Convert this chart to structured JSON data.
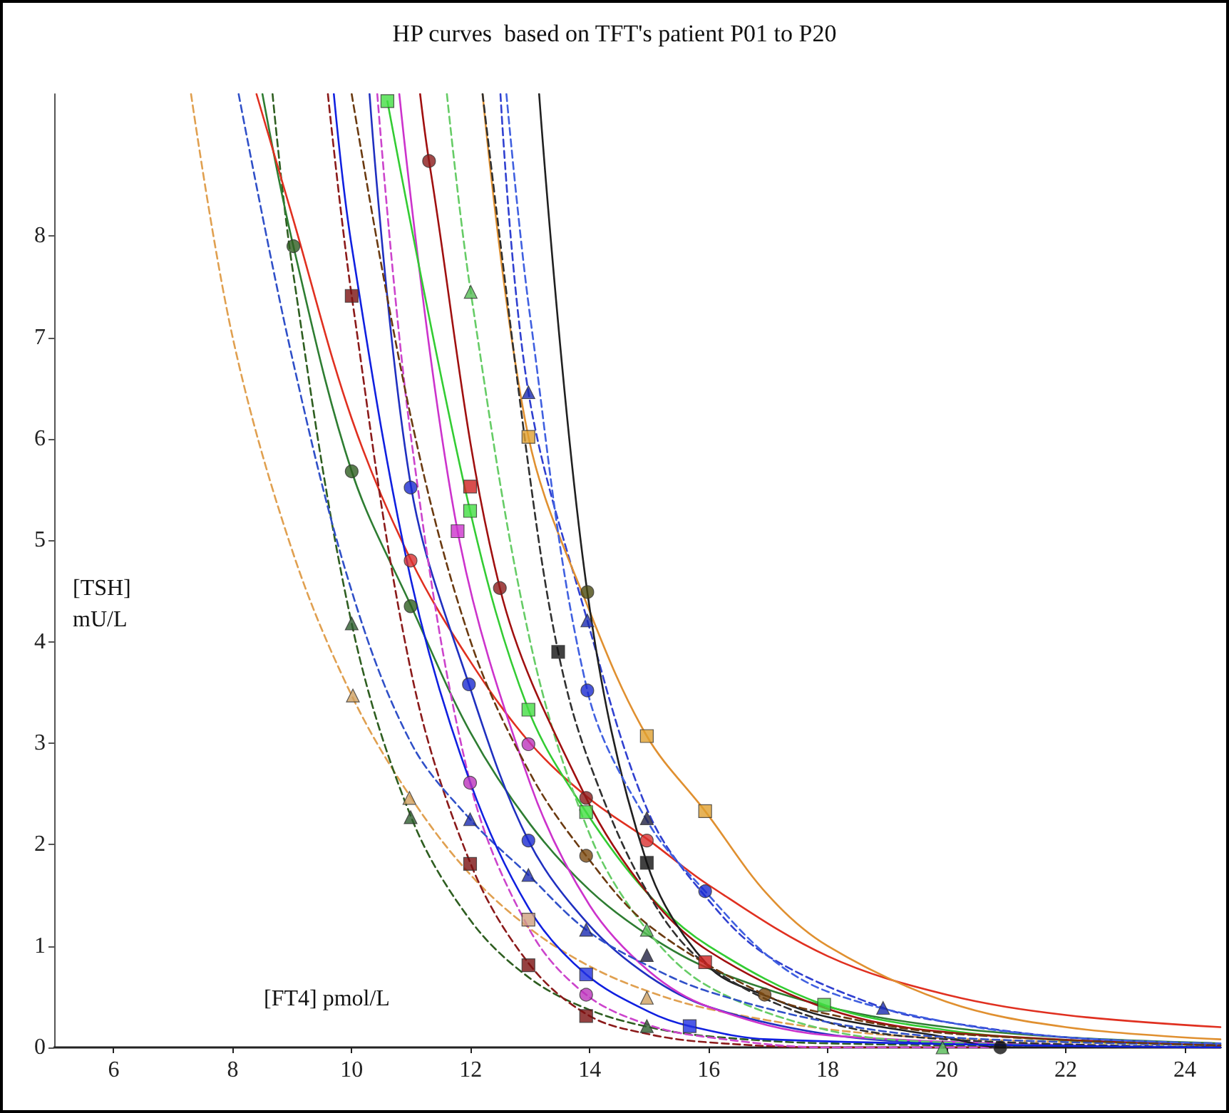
{
  "chart_data": {
    "type": "line",
    "title": "HP curves  based on TFT's patient P01 to P20",
    "xlabel": "[FT4] pmol/L",
    "ylabel": "[TSH] mU/L",
    "xlim": [
      5,
      24.6
    ],
    "ylim": [
      0,
      9.4
    ],
    "xticks": [
      6,
      8,
      10,
      12,
      14,
      16,
      18,
      20,
      22,
      24
    ],
    "yticks": [
      0,
      1,
      2,
      3,
      4,
      5,
      6,
      7,
      8
    ],
    "series": [
      {
        "color": "#e0a050",
        "line_style": "dashed",
        "x": [
          7.3,
          8,
          9,
          10,
          11,
          12,
          13,
          14,
          15,
          16,
          18,
          20,
          24.6
        ],
        "values": [
          9.4,
          7.0,
          4.9,
          3.47,
          2.46,
          1.7,
          1.17,
          0.8,
          0.55,
          0.38,
          0.18,
          0.09,
          0.02
        ]
      },
      {
        "color": "#2e5e20",
        "line_style": "dashed",
        "x": [
          8.67,
          9,
          10,
          11,
          12,
          13,
          14,
          15,
          16,
          18,
          24.6
        ],
        "values": [
          9.4,
          7.7,
          4.18,
          2.27,
          1.25,
          0.68,
          0.37,
          0.2,
          0.11,
          0.04,
          0
        ]
      },
      {
        "color": "#2e7d32",
        "line_style": "solid",
        "x": [
          8.5,
          9.02,
          10,
          11,
          12,
          13,
          14,
          15,
          16,
          18,
          20,
          22,
          24.6
        ],
        "values": [
          9.4,
          7.9,
          5.68,
          4.35,
          3.1,
          2.2,
          1.55,
          1.1,
          0.78,
          0.4,
          0.2,
          0.1,
          0.04
        ]
      },
      {
        "color": "#e03020",
        "line_style": "solid",
        "x": [
          8.4,
          9,
          10,
          11,
          12,
          13,
          14,
          15,
          16,
          18,
          20,
          22,
          24.6
        ],
        "values": [
          9.4,
          8.2,
          6.2,
          4.8,
          3.8,
          3.0,
          2.45,
          2.04,
          1.6,
          0.9,
          0.52,
          0.32,
          0.2
        ]
      },
      {
        "color": "#8b1a1a",
        "line_style": "dashed",
        "x": [
          9.6,
          10,
          11,
          12,
          13,
          14,
          15,
          16,
          18,
          24.6
        ],
        "values": [
          9.4,
          7.41,
          3.7,
          1.81,
          0.81,
          0.31,
          0.13,
          0.05,
          0,
          0
        ]
      },
      {
        "color": "#2030c0",
        "line_style": "solid",
        "x": [
          10.3,
          11,
          11.97,
          12.97,
          14,
          15,
          16,
          18,
          20,
          24.6
        ],
        "values": [
          9.4,
          5.52,
          3.58,
          2.04,
          1.2,
          0.7,
          0.4,
          0.13,
          0.04,
          0
        ]
      },
      {
        "color": "#cc33cc",
        "line_style": "solid",
        "x": [
          10.8,
          11.78,
          13,
          14,
          15,
          16,
          18,
          24.6
        ],
        "values": [
          9.4,
          5.09,
          2.6,
          1.4,
          0.75,
          0.4,
          0.12,
          0
        ]
      },
      {
        "color": "#cc44cc",
        "line_style": "dashed",
        "x": [
          10.43,
          11,
          11.99,
          13,
          13.94,
          15,
          16,
          18,
          24.6
        ],
        "values": [
          9.4,
          6.0,
          2.61,
          1.15,
          0.52,
          0.22,
          0.1,
          0,
          0
        ]
      },
      {
        "color": "#33cc33",
        "line_style": "solid",
        "x": [
          10.6,
          11.99,
          12.97,
          13.94,
          15,
          16,
          17.94,
          20,
          22,
          24.6
        ],
        "values": [
          9.33,
          5.29,
          3.33,
          2.32,
          1.5,
          1.0,
          0.42,
          0.17,
          0.07,
          0.02
        ]
      },
      {
        "color": "#66cc66",
        "line_style": "dashed",
        "x": [
          11.6,
          12,
          13,
          14,
          14.96,
          16,
          18,
          19.93,
          24.6
        ],
        "values": [
          9.4,
          7.45,
          4.0,
          2.1,
          1.16,
          0.6,
          0.17,
          0.05,
          0
        ]
      },
      {
        "color": "#a01010",
        "line_style": "solid",
        "x": [
          11.15,
          11.3,
          12.49,
          13.94,
          15,
          16,
          18,
          20,
          24.6
        ],
        "values": [
          9.4,
          8.74,
          4.53,
          2.46,
          1.5,
          0.95,
          0.38,
          0.15,
          0.02
        ]
      },
      {
        "color": "#3040d0",
        "line_style": "dashed",
        "x": [
          12.5,
          12.97,
          13.96,
          15,
          16,
          17,
          18.93,
          20,
          22,
          24.6
        ],
        "values": [
          9.4,
          6.46,
          4.21,
          2.3,
          1.45,
          0.9,
          0.39,
          0.25,
          0.1,
          0.03
        ]
      },
      {
        "color": "#e09030",
        "line_style": "solid",
        "x": [
          12.2,
          12.97,
          14,
          14.96,
          15.94,
          17,
          18,
          20,
          22,
          24.6
        ],
        "values": [
          9.4,
          6.02,
          4.3,
          3.07,
          2.33,
          1.5,
          1.0,
          0.45,
          0.2,
          0.08
        ]
      },
      {
        "color": "#202020",
        "line_style": "solid",
        "x": [
          13.15,
          13.96,
          14.96,
          16,
          17,
          18,
          20,
          20.9,
          24.6
        ],
        "values": [
          9.4,
          4.49,
          1.82,
          0.8,
          0.5,
          0.3,
          0.1,
          0,
          0
        ]
      },
      {
        "color": "#303030",
        "line_style": "dashed",
        "x": [
          12.2,
          13,
          13.47,
          14,
          15,
          16,
          18,
          20,
          24.6
        ],
        "values": [
          9.4,
          5.6,
          3.9,
          2.8,
          1.5,
          0.8,
          0.25,
          0.08,
          0
        ]
      },
      {
        "color": "#4060e0",
        "line_style": "dashed",
        "x": [
          12.6,
          13,
          13.96,
          15,
          15.94,
          17,
          18,
          20,
          22,
          24.6
        ],
        "values": [
          9.4,
          7.2,
          3.52,
          2.2,
          1.54,
          0.9,
          0.55,
          0.25,
          0.1,
          0.04
        ]
      },
      {
        "color": "#3050c8",
        "line_style": "dashed",
        "x": [
          8.1,
          9,
          10,
          11,
          11.99,
          12.97,
          13.94,
          15,
          16,
          18,
          20,
          24.6
        ],
        "values": [
          9.4,
          6.8,
          4.5,
          3.0,
          2.25,
          1.7,
          1.16,
          0.8,
          0.55,
          0.25,
          0.1,
          0.02
        ]
      },
      {
        "color": "#6b3a10",
        "line_style": "dashed",
        "x": [
          10.0,
          11,
          12,
          13,
          13.94,
          15,
          16.94,
          18,
          20,
          24.6
        ],
        "values": [
          9.4,
          6.2,
          4.0,
          2.7,
          1.89,
          1.2,
          0.52,
          0.33,
          0.14,
          0.02
        ]
      },
      {
        "color": "#1020e0",
        "line_style": "solid",
        "x": [
          9.7,
          10,
          11,
          12,
          13,
          13.94,
          15,
          15.68,
          17,
          24.6
        ],
        "values": [
          9.4,
          7.9,
          4.6,
          2.6,
          1.35,
          0.72,
          0.35,
          0.21,
          0.08,
          0
        ]
      },
      {
        "type": "scatter",
        "color": "#2e5e20",
        "marker": "circle",
        "x": [
          9.02,
          10,
          10.99
        ],
        "values": [
          7.9,
          5.68,
          4.35
        ]
      },
      {
        "type": "scatter",
        "color": "#7a1010",
        "marker": "square",
        "x": [
          10,
          11.99,
          12.97,
          13.94
        ],
        "values": [
          7.41,
          1.81,
          0.81,
          0.31
        ]
      },
      {
        "type": "scatter",
        "color": "#44dd44",
        "marker": "square",
        "x": [
          10.6,
          11.99,
          12.97,
          13.94,
          17.94
        ],
        "values": [
          9.33,
          5.29,
          3.33,
          2.32,
          0.42
        ]
      },
      {
        "type": "scatter",
        "color": "#8b1a1a",
        "marker": "circle",
        "x": [
          11.3,
          12.49,
          13.94
        ],
        "values": [
          8.74,
          4.53,
          2.46
        ]
      },
      {
        "type": "scatter",
        "color": "#55bb55",
        "marker": "triangle",
        "x": [
          12,
          14.96,
          19.93
        ],
        "values": [
          7.45,
          1.16,
          0
        ]
      },
      {
        "type": "scatter",
        "color": "#1a2ab0",
        "marker": "triangle",
        "x": [
          12.97,
          13.96,
          11.99,
          12.97,
          13.94,
          18.93
        ],
        "values": [
          6.46,
          4.21,
          2.25,
          1.7,
          1.16,
          0.39
        ]
      },
      {
        "type": "scatter",
        "color": "#e0a030",
        "marker": "square",
        "x": [
          12.97,
          14.96,
          15.94
        ],
        "values": [
          6.02,
          3.07,
          2.33
        ]
      },
      {
        "type": "scatter",
        "color": "#1a2ad0",
        "marker": "circle",
        "x": [
          10.99,
          11.97,
          13.96,
          12.97,
          15.94
        ],
        "values": [
          5.52,
          3.58,
          3.52,
          2.04,
          1.54
        ]
      },
      {
        "type": "scatter",
        "color": "#d02020",
        "marker": "square",
        "x": [
          11.99,
          15.94
        ],
        "values": [
          5.53,
          0.84
        ]
      },
      {
        "type": "scatter",
        "color": "#cc33cc",
        "marker": "square",
        "x": [
          11.78
        ],
        "values": [
          5.09
        ]
      },
      {
        "type": "scatter",
        "color": "#d83030",
        "marker": "circle",
        "x": [
          10.99,
          14.96
        ],
        "values": [
          4.8,
          2.04
        ]
      },
      {
        "type": "scatter",
        "color": "#4a4a10",
        "marker": "circle",
        "x": [
          13.96
        ],
        "values": [
          4.49
        ]
      },
      {
        "type": "scatter",
        "color": "#111111",
        "marker": "square",
        "x": [
          13.47,
          14.96
        ],
        "values": [
          3.9,
          1.82
        ]
      },
      {
        "type": "scatter",
        "color": "#2e5e30",
        "marker": "triangle",
        "x": [
          10,
          10.99,
          14.96
        ],
        "values": [
          4.18,
          2.27,
          0.21
        ]
      },
      {
        "type": "scatter",
        "color": "#d0a060",
        "marker": "triangle",
        "x": [
          10.02,
          10.97,
          14.96
        ],
        "values": [
          3.47,
          2.46,
          0.49
        ]
      },
      {
        "type": "scatter",
        "color": "#bb33bb",
        "marker": "circle",
        "x": [
          12.97,
          11.99,
          13.94
        ],
        "values": [
          2.99,
          2.61,
          0.52
        ]
      },
      {
        "type": "scatter",
        "color": "#7a4a10",
        "marker": "circle",
        "x": [
          13.94,
          16.94
        ],
        "values": [
          1.89,
          0.52
        ]
      },
      {
        "type": "scatter",
        "color": "#d0a080",
        "marker": "square",
        "x": [
          12.97
        ],
        "values": [
          1.26
        ]
      },
      {
        "type": "scatter",
        "color": "#2030e0",
        "marker": "square",
        "x": [
          13.94,
          15.68
        ],
        "values": [
          0.72,
          0.21
        ]
      },
      {
        "type": "scatter",
        "color": "#222244",
        "marker": "triangle",
        "x": [
          14.96,
          14.96
        ],
        "values": [
          2.26,
          0.91
        ]
      },
      {
        "type": "scatter",
        "color": "#111111",
        "marker": "circle",
        "x": [
          20.9
        ],
        "values": [
          0
        ]
      }
    ]
  }
}
